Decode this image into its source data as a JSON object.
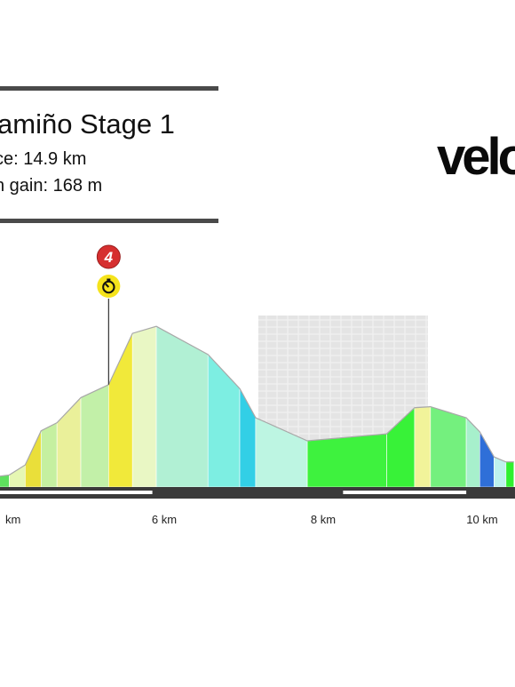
{
  "header": {
    "title": "amiño Stage 1",
    "distance_text": "ce: 14.9 km",
    "elevation_text": "n gain: 168 m"
  },
  "logo": {
    "text": "velo"
  },
  "marker": {
    "number": "4",
    "icon": "stopwatch-icon",
    "km": 5.3
  },
  "chart_data": {
    "type": "area",
    "title": "",
    "xlabel": "",
    "ylabel": "",
    "x_ticks": [
      {
        "km": 4,
        "label": "km"
      },
      {
        "km": 6,
        "label": "6 km"
      },
      {
        "km": 8,
        "label": "8 km"
      },
      {
        "km": 10,
        "label": "10 km"
      }
    ],
    "profile": [
      {
        "km": 3.85,
        "elev": 10
      },
      {
        "km": 4.05,
        "elev": 12
      },
      {
        "km": 4.25,
        "elev": 22
      },
      {
        "km": 4.45,
        "elev": 56
      },
      {
        "km": 4.65,
        "elev": 64
      },
      {
        "km": 4.95,
        "elev": 89
      },
      {
        "km": 5.3,
        "elev": 102
      },
      {
        "km": 5.6,
        "elev": 153
      },
      {
        "km": 5.9,
        "elev": 160
      },
      {
        "km": 6.55,
        "elev": 132
      },
      {
        "km": 6.95,
        "elev": 98
      },
      {
        "km": 7.15,
        "elev": 69
      },
      {
        "km": 7.8,
        "elev": 46
      },
      {
        "km": 8.8,
        "elev": 53
      },
      {
        "km": 9.15,
        "elev": 79
      },
      {
        "km": 9.35,
        "elev": 80
      },
      {
        "km": 9.8,
        "elev": 69
      },
      {
        "km": 9.97,
        "elev": 55
      },
      {
        "km": 10.15,
        "elev": 30
      },
      {
        "km": 10.3,
        "elev": 25
      },
      {
        "km": 10.4,
        "elev": 25
      }
    ],
    "segment_colors": [
      "#5ee05e",
      "#e6f7b3",
      "#eadf3a",
      "#c5f0a0",
      "#eaf09a",
      "#c2f0a8",
      "#f1e93a",
      "#e9f7c4",
      "#b1f0d4",
      "#7deee2",
      "#32cfe6",
      "#bdf5e2",
      "#3ef23e",
      "#38f238",
      "#f1f39a",
      "#74f07e",
      "#a7f0cc",
      "#2f6fd8",
      "#bdf2ee",
      "#2ff02f"
    ],
    "urban_zone_km": [
      7.15,
      9.35
    ],
    "bars_km": [
      [
        3.9,
        5.85
      ],
      [
        8.25,
        9.8
      ]
    ]
  }
}
